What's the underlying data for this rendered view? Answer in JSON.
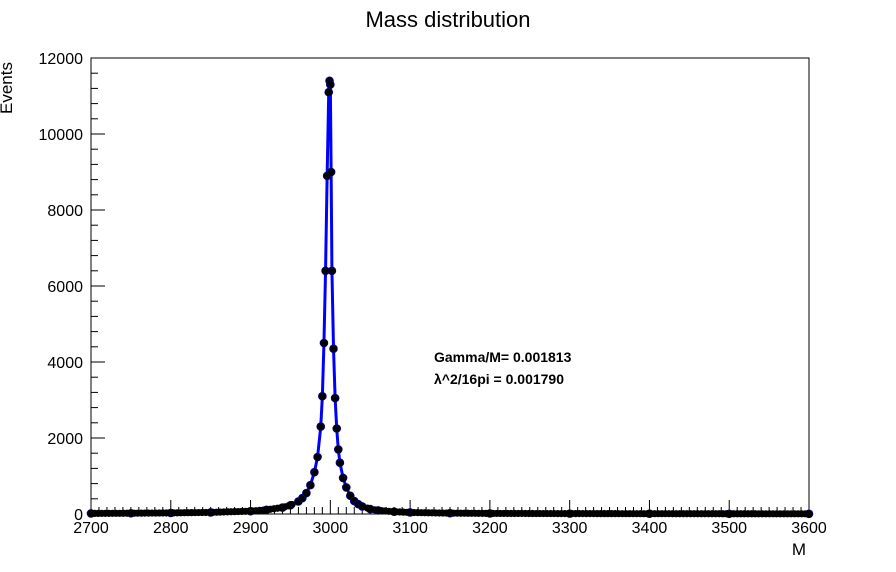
{
  "chart_data": {
    "type": "scatter",
    "title": "Mass distribution",
    "xlabel": "M",
    "ylabel": "Events",
    "xlim": [
      2700,
      3600
    ],
    "ylim": [
      0,
      12000
    ],
    "x_ticks": [
      "2700",
      "2800",
      "2900",
      "3000",
      "3100",
      "3200",
      "3300",
      "3400",
      "3500",
      "3600"
    ],
    "y_ticks": [
      "0",
      "2000",
      "4000",
      "6000",
      "8000",
      "10000",
      "12000"
    ],
    "grid": false,
    "legend": "none",
    "annotations": [
      "Gamma/M= 0.001813",
      "λ^2/16pi = 0.001790"
    ],
    "colors": {
      "fit_line": "#0000ff",
      "markers": "#000000",
      "frame": "#000000"
    },
    "series": [
      {
        "kind": "points-with-fit",
        "x": [
          2700,
          2750,
          2800,
          2850,
          2900,
          2920,
          2940,
          2950,
          2960,
          2965,
          2970,
          2975,
          2980,
          2984,
          2988,
          2990,
          2992,
          2994,
          2996,
          2998,
          2999,
          3000,
          3001,
          3002,
          3004,
          3006,
          3008,
          3010,
          3012,
          3016,
          3020,
          3025,
          3030,
          3035,
          3040,
          3050,
          3060,
          3080,
          3100,
          3150,
          3200,
          3300,
          3400,
          3500,
          3600
        ],
        "y": [
          15,
          20,
          28,
          42,
          75,
          110,
          170,
          230,
          330,
          420,
          550,
          760,
          1100,
          1500,
          2300,
          3100,
          4500,
          6400,
          8900,
          11100,
          11400,
          11300,
          9000,
          6400,
          4350,
          3050,
          2250,
          1700,
          1350,
          950,
          700,
          480,
          340,
          260,
          200,
          130,
          95,
          60,
          40,
          22,
          15,
          10,
          8,
          6,
          5
        ]
      }
    ]
  }
}
